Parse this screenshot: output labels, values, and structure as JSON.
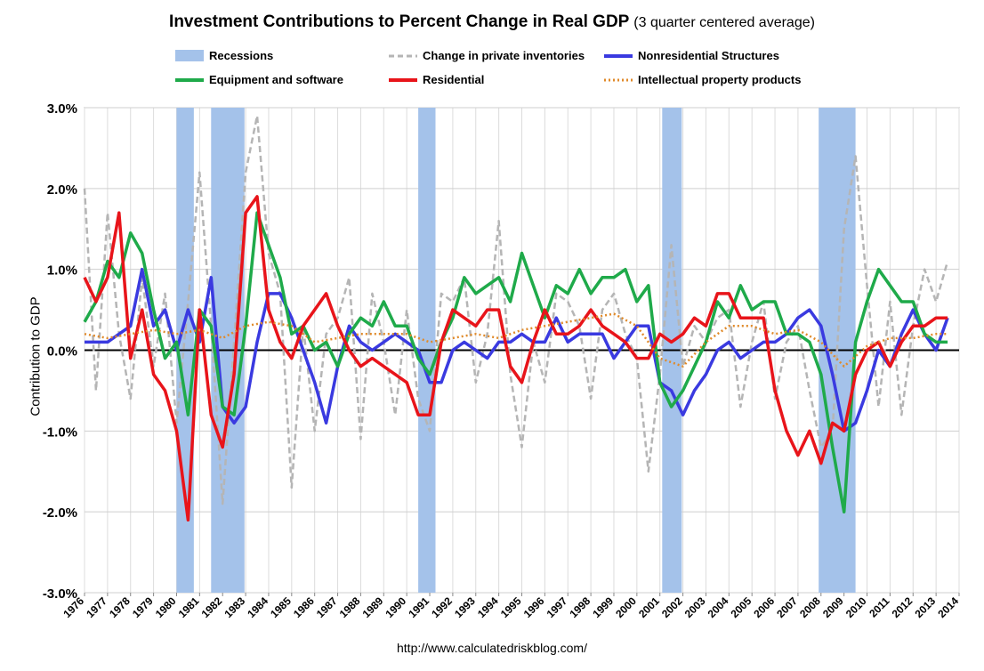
{
  "chart_data": {
    "type": "line",
    "title": "Investment Contributions to Percent Change in Real GDP",
    "subtitle": "(3 quarter centered average)",
    "ylabel": "Contribution to GDP",
    "xlabel": "",
    "ylim": [
      -3.0,
      3.0
    ],
    "xlim": [
      1976,
      2014
    ],
    "y_ticks": [
      3.0,
      2.0,
      1.0,
      0.0,
      -1.0,
      -2.0,
      -3.0
    ],
    "y_tick_labels": [
      "3.0%",
      "2.0%",
      "1.0%",
      "0.0%",
      "-1.0%",
      "-2.0%",
      "-3.0%"
    ],
    "x_tick_labels": [
      "1976",
      "1977",
      "1978",
      "1979",
      "1980",
      "1981",
      "1982",
      "1983",
      "1984",
      "1985",
      "1986",
      "1987",
      "1988",
      "1989",
      "1990",
      "1991",
      "1992",
      "1993",
      "1994",
      "1995",
      "1996",
      "1997",
      "1998",
      "1999",
      "2000",
      "2001",
      "2002",
      "2003",
      "2004",
      "2005",
      "2006",
      "2007",
      "2008",
      "2009",
      "2010",
      "2011",
      "2012",
      "2013",
      "2014"
    ],
    "grid": true,
    "recessions": [
      [
        1980.0,
        1980.75
      ],
      [
        1981.5,
        1982.95
      ],
      [
        1990.5,
        1991.25
      ],
      [
        2001.1,
        2001.95
      ],
      [
        2007.9,
        2009.5
      ]
    ],
    "series": [
      {
        "name": "Change in private inventories",
        "color": "#b5b5b5",
        "style": "dashed",
        "x": [
          1976.0,
          1976.5,
          1977.0,
          1977.5,
          1978.0,
          1978.5,
          1979.0,
          1979.5,
          1980.0,
          1980.5,
          1981.0,
          1981.5,
          1982.0,
          1982.5,
          1983.0,
          1983.5,
          1984.0,
          1984.5,
          1985.0,
          1985.5,
          1986.0,
          1986.5,
          1987.0,
          1987.5,
          1988.0,
          1988.5,
          1989.0,
          1989.5,
          1990.0,
          1990.5,
          1991.0,
          1991.5,
          1992.0,
          1992.5,
          1993.0,
          1993.5,
          1994.0,
          1994.5,
          1995.0,
          1995.5,
          1996.0,
          1996.5,
          1997.0,
          1997.5,
          1998.0,
          1998.5,
          1999.0,
          1999.5,
          2000.0,
          2000.5,
          2001.0,
          2001.5,
          2002.0,
          2002.5,
          2003.0,
          2003.5,
          2004.0,
          2004.5,
          2005.0,
          2005.5,
          2006.0,
          2006.5,
          2007.0,
          2007.5,
          2008.0,
          2008.5,
          2009.0,
          2009.5,
          2010.0,
          2010.5,
          2011.0,
          2011.5,
          2012.0,
          2012.5,
          2013.0,
          2013.5
        ],
        "values": [
          2.0,
          -0.5,
          1.7,
          0.2,
          -0.6,
          0.9,
          -0.2,
          0.7,
          -0.9,
          0.6,
          2.2,
          0.3,
          -1.9,
          0.1,
          2.2,
          2.9,
          1.2,
          0.7,
          -1.7,
          0.3,
          -1.0,
          0.2,
          0.4,
          0.9,
          -1.1,
          0.7,
          0.1,
          -0.8,
          0.5,
          -0.6,
          -1.0,
          0.7,
          0.6,
          0.9,
          -0.4,
          0.2,
          1.6,
          -0.3,
          -1.2,
          0.1,
          -0.4,
          0.7,
          0.6,
          0.3,
          -0.6,
          0.5,
          0.7,
          0.2,
          -0.1,
          -1.5,
          -0.3,
          1.3,
          -0.2,
          0.3,
          0.1,
          0.4,
          0.5,
          -0.7,
          0.1,
          0.6,
          -0.6,
          0.1,
          0.3,
          -0.5,
          -1.2,
          -1.0,
          1.5,
          2.4,
          0.8,
          -0.7,
          0.6,
          -0.8,
          0.3,
          1.0,
          0.6,
          1.1
        ]
      },
      {
        "name": "Nonresidential Structures",
        "color": "#3a3ae0",
        "style": "solid",
        "x": [
          1976.0,
          1976.5,
          1977.0,
          1977.5,
          1978.0,
          1978.5,
          1979.0,
          1979.5,
          1980.0,
          1980.5,
          1981.0,
          1981.5,
          1982.0,
          1982.5,
          1983.0,
          1983.5,
          1984.0,
          1984.5,
          1985.0,
          1985.5,
          1986.0,
          1986.5,
          1987.0,
          1987.5,
          1988.0,
          1988.5,
          1989.0,
          1989.5,
          1990.0,
          1990.5,
          1991.0,
          1991.5,
          1992.0,
          1992.5,
          1993.0,
          1993.5,
          1994.0,
          1994.5,
          1995.0,
          1995.5,
          1996.0,
          1996.5,
          1997.0,
          1997.5,
          1998.0,
          1998.5,
          1999.0,
          1999.5,
          2000.0,
          2000.5,
          2001.0,
          2001.5,
          2002.0,
          2002.5,
          2003.0,
          2003.5,
          2004.0,
          2004.5,
          2005.0,
          2005.5,
          2006.0,
          2006.5,
          2007.0,
          2007.5,
          2008.0,
          2008.5,
          2009.0,
          2009.5,
          2010.0,
          2010.5,
          2011.0,
          2011.5,
          2012.0,
          2012.5,
          2013.0,
          2013.5
        ],
        "values": [
          0.1,
          0.1,
          0.1,
          0.2,
          0.3,
          1.0,
          0.3,
          0.5,
          0.0,
          0.5,
          0.1,
          0.9,
          -0.7,
          -0.9,
          -0.7,
          0.1,
          0.7,
          0.7,
          0.4,
          0.0,
          -0.4,
          -0.9,
          -0.2,
          0.3,
          0.1,
          0.0,
          0.1,
          0.2,
          0.1,
          0.0,
          -0.4,
          -0.4,
          0.0,
          0.1,
          0.0,
          -0.1,
          0.1,
          0.1,
          0.2,
          0.1,
          0.1,
          0.4,
          0.1,
          0.2,
          0.2,
          0.2,
          -0.1,
          0.1,
          0.3,
          0.3,
          -0.4,
          -0.5,
          -0.8,
          -0.5,
          -0.3,
          0.0,
          0.1,
          -0.1,
          0.0,
          0.1,
          0.1,
          0.2,
          0.4,
          0.5,
          0.3,
          -0.3,
          -1.0,
          -0.9,
          -0.5,
          0.0,
          -0.2,
          0.2,
          0.5,
          0.2,
          0.0,
          0.4
        ]
      },
      {
        "name": "Equipment and software",
        "color": "#1faa4a",
        "style": "solid",
        "x": [
          1976.0,
          1976.5,
          1977.0,
          1977.5,
          1978.0,
          1978.5,
          1979.0,
          1979.5,
          1980.0,
          1980.5,
          1981.0,
          1981.5,
          1982.0,
          1982.5,
          1983.0,
          1983.5,
          1984.0,
          1984.5,
          1985.0,
          1985.5,
          1986.0,
          1986.5,
          1987.0,
          1987.5,
          1988.0,
          1988.5,
          1989.0,
          1989.5,
          1990.0,
          1990.5,
          1991.0,
          1991.5,
          1992.0,
          1992.5,
          1993.0,
          1993.5,
          1994.0,
          1994.5,
          1995.0,
          1995.5,
          1996.0,
          1996.5,
          1997.0,
          1997.5,
          1998.0,
          1998.5,
          1999.0,
          1999.5,
          2000.0,
          2000.5,
          2001.0,
          2001.5,
          2002.0,
          2002.5,
          2003.0,
          2003.5,
          2004.0,
          2004.5,
          2005.0,
          2005.5,
          2006.0,
          2006.5,
          2007.0,
          2007.5,
          2008.0,
          2008.5,
          2009.0,
          2009.5,
          2010.0,
          2010.5,
          2011.0,
          2011.5,
          2012.0,
          2012.5,
          2013.0,
          2013.5
        ],
        "values": [
          0.35,
          0.6,
          1.1,
          0.9,
          1.45,
          1.2,
          0.5,
          -0.1,
          0.1,
          -0.8,
          0.5,
          0.3,
          -0.7,
          -0.8,
          0.3,
          1.7,
          1.3,
          0.9,
          0.2,
          0.3,
          0.0,
          0.1,
          -0.2,
          0.2,
          0.4,
          0.3,
          0.6,
          0.3,
          0.3,
          -0.1,
          -0.3,
          0.1,
          0.4,
          0.9,
          0.7,
          0.8,
          0.9,
          0.6,
          1.2,
          0.8,
          0.4,
          0.8,
          0.7,
          1.0,
          0.7,
          0.9,
          0.9,
          1.0,
          0.6,
          0.8,
          -0.4,
          -0.7,
          -0.5,
          -0.2,
          0.1,
          0.6,
          0.4,
          0.8,
          0.5,
          0.6,
          0.6,
          0.2,
          0.2,
          0.1,
          -0.3,
          -1.2,
          -2.0,
          0.1,
          0.6,
          1.0,
          0.8,
          0.6,
          0.6,
          0.2,
          0.1,
          0.1
        ]
      },
      {
        "name": "Residential",
        "color": "#e8141a",
        "style": "solid",
        "x": [
          1976.0,
          1976.5,
          1977.0,
          1977.5,
          1978.0,
          1978.5,
          1979.0,
          1979.5,
          1980.0,
          1980.5,
          1981.0,
          1981.5,
          1982.0,
          1982.5,
          1983.0,
          1983.5,
          1984.0,
          1984.5,
          1985.0,
          1985.5,
          1986.0,
          1986.5,
          1987.0,
          1987.5,
          1988.0,
          1988.5,
          1989.0,
          1989.5,
          1990.0,
          1990.5,
          1991.0,
          1991.5,
          1992.0,
          1992.5,
          1993.0,
          1993.5,
          1994.0,
          1994.5,
          1995.0,
          1995.5,
          1996.0,
          1996.5,
          1997.0,
          1997.5,
          1998.0,
          1998.5,
          1999.0,
          1999.5,
          2000.0,
          2000.5,
          2001.0,
          2001.5,
          2002.0,
          2002.5,
          2003.0,
          2003.5,
          2004.0,
          2004.5,
          2005.0,
          2005.5,
          2006.0,
          2006.5,
          2007.0,
          2007.5,
          2008.0,
          2008.5,
          2009.0,
          2009.5,
          2010.0,
          2010.5,
          2011.0,
          2011.5,
          2012.0,
          2012.5,
          2013.0,
          2013.5
        ],
        "values": [
          0.9,
          0.6,
          0.9,
          1.7,
          -0.1,
          0.5,
          -0.3,
          -0.5,
          -1.0,
          -2.1,
          0.5,
          -0.8,
          -1.2,
          -0.3,
          1.7,
          1.9,
          0.5,
          0.1,
          -0.1,
          0.3,
          0.5,
          0.7,
          0.3,
          0.0,
          -0.2,
          -0.1,
          -0.2,
          -0.3,
          -0.4,
          -0.8,
          -0.8,
          0.1,
          0.5,
          0.4,
          0.3,
          0.5,
          0.5,
          -0.2,
          -0.4,
          0.1,
          0.5,
          0.2,
          0.2,
          0.3,
          0.5,
          0.3,
          0.2,
          0.1,
          -0.1,
          -0.1,
          0.2,
          0.1,
          0.2,
          0.4,
          0.3,
          0.7,
          0.7,
          0.4,
          0.4,
          0.4,
          -0.5,
          -1.0,
          -1.3,
          -1.0,
          -1.4,
          -0.9,
          -1.0,
          -0.3,
          0.0,
          0.1,
          -0.2,
          0.1,
          0.3,
          0.3,
          0.4,
          0.4
        ]
      },
      {
        "name": "Intellectual property products",
        "color": "#e08a2a",
        "style": "dotted",
        "x": [
          1976.0,
          1977.0,
          1978.0,
          1979.0,
          1980.0,
          1981.0,
          1982.0,
          1983.0,
          1984.0,
          1985.0,
          1986.0,
          1987.0,
          1988.0,
          1989.0,
          1990.0,
          1991.0,
          1992.0,
          1993.0,
          1994.0,
          1995.0,
          1996.0,
          1997.0,
          1998.0,
          1999.0,
          2000.0,
          2001.0,
          2002.0,
          2003.0,
          2004.0,
          2005.0,
          2006.0,
          2007.0,
          2008.0,
          2009.0,
          2010.0,
          2011.0,
          2012.0,
          2013.0,
          2013.5
        ],
        "values": [
          0.2,
          0.15,
          0.2,
          0.25,
          0.2,
          0.25,
          0.15,
          0.3,
          0.35,
          0.3,
          0.1,
          0.15,
          0.2,
          0.2,
          0.2,
          0.1,
          0.15,
          0.2,
          0.15,
          0.25,
          0.3,
          0.35,
          0.4,
          0.45,
          0.3,
          -0.1,
          -0.2,
          0.1,
          0.3,
          0.3,
          0.2,
          0.25,
          0.1,
          -0.2,
          0.05,
          0.15,
          0.15,
          0.2,
          0.2
        ]
      }
    ],
    "legend": {
      "recessions": "Recessions",
      "inventories": "Change in private inventories",
      "nonres": "Nonresidential Structures",
      "equipment": "Equipment and software",
      "residential": "Residential",
      "ip": "Intellectual property products"
    },
    "source": "http://www.calculatedriskblog.com/"
  }
}
